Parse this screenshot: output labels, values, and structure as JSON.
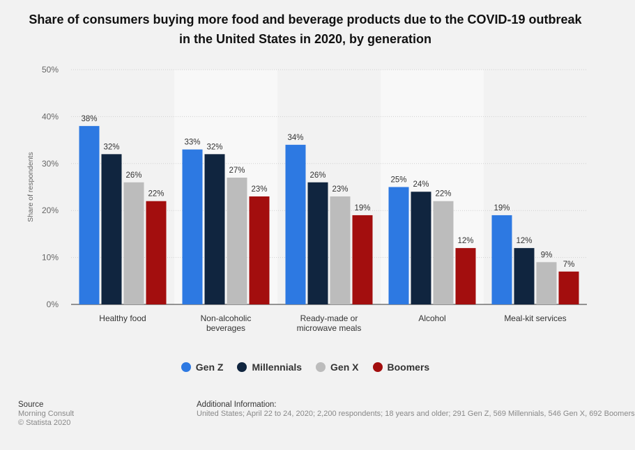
{
  "chart_data": {
    "type": "bar",
    "title": "Share of consumers buying more food and beverage products due to the COVID-19 outbreak in the United States in 2020, by generation",
    "ylabel": "Share of respondents",
    "xlabel": "",
    "ylim": [
      0,
      50
    ],
    "yticks": [
      "0%",
      "10%",
      "20%",
      "30%",
      "40%",
      "50%"
    ],
    "categories": [
      [
        "Healthy food"
      ],
      [
        "Non-alcoholic",
        "beverages"
      ],
      [
        "Ready-made or",
        "microwave meals"
      ],
      [
        "Alcohol"
      ],
      [
        "Meal-kit services"
      ]
    ],
    "series": [
      {
        "name": "Gen Z",
        "color": "#2d79e2",
        "values": [
          38,
          33,
          34,
          25,
          19
        ]
      },
      {
        "name": "Millennials",
        "color": "#10253f",
        "values": [
          32,
          32,
          26,
          24,
          12
        ]
      },
      {
        "name": "Gen X",
        "color": "#bcbcbc",
        "values": [
          26,
          27,
          23,
          22,
          9
        ]
      },
      {
        "name": "Boomers",
        "color": "#a30e0e",
        "values": [
          22,
          23,
          19,
          12,
          7
        ]
      }
    ],
    "legend_position": "bottom"
  },
  "footer": {
    "source_heading": "Source",
    "source_lines": [
      "Morning Consult",
      "© Statista 2020"
    ],
    "info_heading": "Additional Information:",
    "info_text": "United States; April 22 to 24, 2020; 2,200 respondents; 18 years and older; 291 Gen Z, 569 Millennials, 546 Gen X, 692 Boomers"
  }
}
